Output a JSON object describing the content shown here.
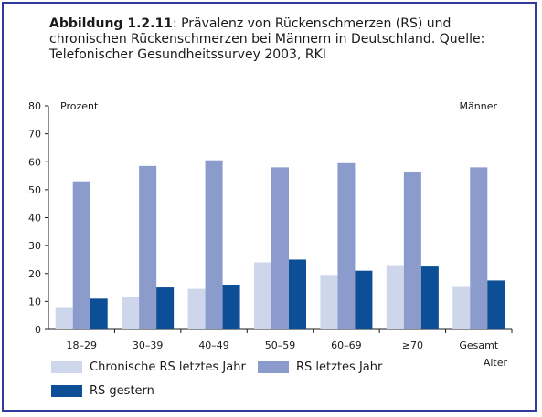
{
  "caption": {
    "label": "Abbildung 1.2.11",
    "text": ": Prävalenz von Rückenschmerzen (RS) und chronischen Rückenschmerzen bei Männern in Deutschland. Quelle: Telefonischer Gesundheitssurvey 2003, RKI"
  },
  "colors": {
    "frame": "#2f3c9c",
    "chronisch": "#cdd6ea",
    "letztes_jahr": "#8a9bcc",
    "gestern": "#0d4f96"
  },
  "chart_data": {
    "type": "bar",
    "ylabel": "Prozent",
    "corner_label": "Männer",
    "xlabel": "Alter",
    "ylim": [
      0,
      80
    ],
    "yticks": [
      0,
      10,
      20,
      30,
      40,
      50,
      60,
      70,
      80
    ],
    "grid": false,
    "legend_position": "bottom",
    "categories": [
      "18–29",
      "30–39",
      "40–49",
      "50–59",
      "60–69",
      "≥70",
      "Gesamt"
    ],
    "series": [
      {
        "name": "Chronische RS letztes Jahr",
        "values": [
          8,
          11.5,
          14.5,
          24,
          19.5,
          23,
          15.5
        ]
      },
      {
        "name": "RS letztes Jahr",
        "values": [
          53,
          58.5,
          60.5,
          58,
          59.5,
          56.5,
          58
        ]
      },
      {
        "name": "RS gestern",
        "values": [
          11,
          15,
          16,
          25,
          21,
          22.5,
          17.5
        ]
      }
    ]
  }
}
